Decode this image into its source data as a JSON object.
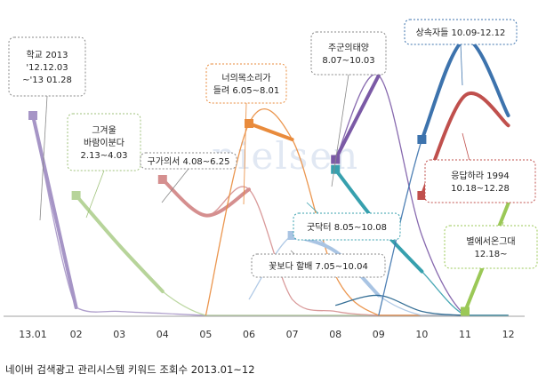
{
  "caption": "네이버 검색광고 관리시스템 키워드 조회수 2013.01~12",
  "watermark": "nielsen",
  "chart_data": {
    "type": "line",
    "categories": [
      "13.01",
      "02",
      "03",
      "04",
      "05",
      "06",
      "07",
      "08",
      "09",
      "10",
      "11",
      "12"
    ],
    "ylim": [
      0,
      100
    ],
    "grid": false,
    "series": [
      {
        "color": "#a695c6",
        "values": [
          100,
          4,
          2,
          1,
          0,
          0,
          0,
          0,
          0,
          0,
          0,
          0
        ]
      },
      {
        "color": "#b7d49a",
        "values": [
          null,
          60,
          35,
          12,
          0,
          0,
          0,
          0,
          0,
          0,
          0,
          0
        ]
      },
      {
        "color": "#d58f8f",
        "values": [
          null,
          null,
          null,
          68,
          50,
          63,
          8,
          2,
          0,
          0,
          0,
          0
        ]
      },
      {
        "color": "#e98b3c",
        "values": [
          null,
          null,
          null,
          null,
          0,
          96,
          88,
          20,
          0,
          0,
          0,
          0
        ]
      },
      {
        "color": "#a9c4e3",
        "values": [
          null,
          null,
          null,
          null,
          null,
          8,
          40,
          32,
          10,
          0,
          0,
          0
        ]
      },
      {
        "color": "#1f5f8b",
        "values": [
          null,
          null,
          null,
          null,
          null,
          null,
          null,
          5,
          10,
          2,
          0,
          0
        ]
      },
      {
        "color": "#7b5aa6",
        "values": [
          null,
          null,
          null,
          null,
          null,
          null,
          null,
          78,
          120,
          40,
          0,
          0
        ]
      },
      {
        "color": "#37a0ae",
        "values": [
          null,
          null,
          null,
          null,
          null,
          null,
          null,
          73,
          45,
          22,
          0,
          0
        ]
      },
      {
        "color": "#3d73ad",
        "values": [
          null,
          null,
          null,
          null,
          null,
          null,
          null,
          null,
          0,
          88,
          138,
          100
        ]
      },
      {
        "color": "#c0504d",
        "values": [
          null,
          null,
          null,
          null,
          null,
          null,
          null,
          null,
          null,
          60,
          110,
          95
        ]
      },
      {
        "color": "#9bc857",
        "values": [
          null,
          null,
          null,
          null,
          null,
          null,
          null,
          null,
          null,
          null,
          2,
          56
        ]
      }
    ],
    "annotations": [
      {
        "lines": [
          "학교 2013",
          "'12.12.03",
          "~'13  01.28"
        ],
        "color": "#888888"
      },
      {
        "lines": [
          "그겨울",
          "바람이분다",
          "2.13~4.03"
        ],
        "color": "#9fc27b"
      },
      {
        "lines": [
          "구가의서  4.08~6.25"
        ],
        "color": "#888888"
      },
      {
        "lines": [
          "너의목소리가",
          "들려  6.05~8.01"
        ],
        "color": "#e98b3c"
      },
      {
        "lines": [
          "주군의태양",
          "8.07~10.03"
        ],
        "color": "#888888"
      },
      {
        "lines": [
          "상속자들  10.09-12.12"
        ],
        "color": "#3d73ad"
      },
      {
        "lines": [
          "응답하라 1994",
          "10.18~12.28"
        ],
        "color": "#c0504d"
      },
      {
        "lines": [
          "굿닥터    8.05~10.08"
        ],
        "color": "#37a0ae"
      },
      {
        "lines": [
          "꽃보다  할배       7.05~10.04"
        ],
        "color": "#888888"
      },
      {
        "lines": [
          "별에서온그대",
          "12.18~"
        ],
        "color": "#9bc857"
      }
    ]
  }
}
